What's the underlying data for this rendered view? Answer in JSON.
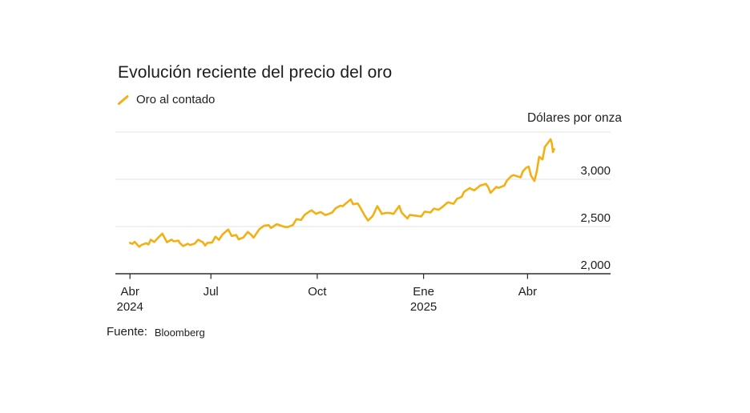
{
  "title": "Evolución reciente del precio del oro",
  "legend": {
    "label": "Oro al contado"
  },
  "unit_label": "Dólares por onza",
  "source": {
    "prefix": "Fuente:",
    "name": "Bloomberg"
  },
  "colors": {
    "line": "#F3B013",
    "grid": "#E3E3E3",
    "axis": "#2E2E2E",
    "text": "#1E1E1E"
  },
  "chart_data": {
    "type": "line",
    "title": "Evolución reciente del precio del oro",
    "series_name": "Oro al contado",
    "unit": "Dólares por onza",
    "x_unit": "days since 2024-04-22",
    "x_start_date": "2024-04-22",
    "x_end_date": "2025-04-24",
    "ylim": [
      2000,
      3500
    ],
    "grid": "horizontal",
    "legend_position": "top-left",
    "y_gridlines": [
      {
        "value": 3500,
        "label": ""
      },
      {
        "value": 3000,
        "label": "3,000"
      },
      {
        "value": 2500,
        "label": "2,500"
      },
      {
        "value": 2000,
        "label": "2,000",
        "axis": true
      }
    ],
    "x_ticks": [
      {
        "day": 0,
        "line1": "Abr",
        "line2": "2024"
      },
      {
        "day": 70,
        "line1": "Jul",
        "line2": ""
      },
      {
        "day": 162,
        "line1": "Oct",
        "line2": ""
      },
      {
        "day": 254,
        "line1": "Ene",
        "line2": "2025"
      },
      {
        "day": 344,
        "line1": "Abr",
        "line2": ""
      }
    ],
    "points": [
      [
        0,
        2327
      ],
      [
        2,
        2316
      ],
      [
        4,
        2338
      ],
      [
        8,
        2286
      ],
      [
        10,
        2304
      ],
      [
        14,
        2324
      ],
      [
        16,
        2309
      ],
      [
        18,
        2361
      ],
      [
        21,
        2336
      ],
      [
        24,
        2377
      ],
      [
        28,
        2425
      ],
      [
        30,
        2379
      ],
      [
        32,
        2334
      ],
      [
        36,
        2361
      ],
      [
        38,
        2343
      ],
      [
        42,
        2350
      ],
      [
        43,
        2327
      ],
      [
        46,
        2293
      ],
      [
        50,
        2317
      ],
      [
        52,
        2304
      ],
      [
        56,
        2319
      ],
      [
        59,
        2360
      ],
      [
        63,
        2334
      ],
      [
        65,
        2298
      ],
      [
        67,
        2327
      ],
      [
        71,
        2330
      ],
      [
        74,
        2392
      ],
      [
        77,
        2359
      ],
      [
        80,
        2415
      ],
      [
        85,
        2469
      ],
      [
        88,
        2400
      ],
      [
        92,
        2409
      ],
      [
        94,
        2364
      ],
      [
        98,
        2383
      ],
      [
        102,
        2443
      ],
      [
        105,
        2410
      ],
      [
        107,
        2382
      ],
      [
        112,
        2472
      ],
      [
        116,
        2508
      ],
      [
        120,
        2514
      ],
      [
        122,
        2485
      ],
      [
        127,
        2525
      ],
      [
        133,
        2499
      ],
      [
        135,
        2494
      ],
      [
        137,
        2497
      ],
      [
        141,
        2516
      ],
      [
        144,
        2578
      ],
      [
        148,
        2569
      ],
      [
        151,
        2622
      ],
      [
        155,
        2657
      ],
      [
        157,
        2672
      ],
      [
        161,
        2635
      ],
      [
        165,
        2653
      ],
      [
        169,
        2621
      ],
      [
        171,
        2629
      ],
      [
        175,
        2648
      ],
      [
        178,
        2693
      ],
      [
        182,
        2720
      ],
      [
        184,
        2715
      ],
      [
        191,
        2787
      ],
      [
        193,
        2736
      ],
      [
        197,
        2744
      ],
      [
        199,
        2707
      ],
      [
        203,
        2619
      ],
      [
        206,
        2563
      ],
      [
        210,
        2611
      ],
      [
        214,
        2716
      ],
      [
        218,
        2633
      ],
      [
        221,
        2643
      ],
      [
        225,
        2643
      ],
      [
        228,
        2633
      ],
      [
        233,
        2718
      ],
      [
        235,
        2648
      ],
      [
        240,
        2585
      ],
      [
        242,
        2622
      ],
      [
        246,
        2617
      ],
      [
        252,
        2606
      ],
      [
        255,
        2658
      ],
      [
        260,
        2648
      ],
      [
        263,
        2690
      ],
      [
        267,
        2677
      ],
      [
        270,
        2703
      ],
      [
        275,
        2756
      ],
      [
        280,
        2741
      ],
      [
        283,
        2794
      ],
      [
        287,
        2814
      ],
      [
        289,
        2867
      ],
      [
        294,
        2908
      ],
      [
        295,
        2898
      ],
      [
        298,
        2883
      ],
      [
        303,
        2933
      ],
      [
        308,
        2951
      ],
      [
        310,
        2916
      ],
      [
        312,
        2857
      ],
      [
        317,
        2919
      ],
      [
        319,
        2909
      ],
      [
        324,
        2934
      ],
      [
        326,
        2984
      ],
      [
        330,
        3035
      ],
      [
        332,
        3044
      ],
      [
        338,
        3020
      ],
      [
        340,
        3085
      ],
      [
        343,
        3124
      ],
      [
        345,
        3134
      ],
      [
        347,
        3038
      ],
      [
        350,
        2983
      ],
      [
        352,
        3083
      ],
      [
        354,
        3238
      ],
      [
        357,
        3210
      ],
      [
        359,
        3343
      ],
      [
        364,
        3424
      ],
      [
        365,
        3380
      ],
      [
        366,
        3288
      ],
      [
        367,
        3319
      ]
    ]
  }
}
